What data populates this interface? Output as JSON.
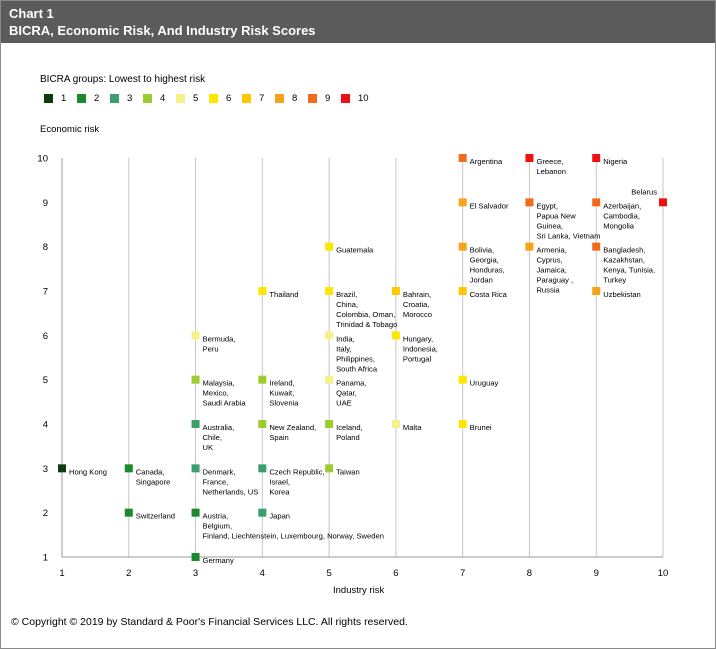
{
  "header": {
    "chart_number": "Chart 1",
    "title": "BICRA, Economic Risk, And Industry Risk Scores"
  },
  "legend": {
    "title": "BICRA groups:  Lowest to highest risk",
    "items": [
      {
        "label": "1",
        "color": "#0d3b10"
      },
      {
        "label": "2",
        "color": "#1a8a2c"
      },
      {
        "label": "3",
        "color": "#3a9e6e"
      },
      {
        "label": "4",
        "color": "#9ccc2e"
      },
      {
        "label": "5",
        "color": "#f4f08a"
      },
      {
        "label": "6",
        "color": "#ffe600"
      },
      {
        "label": "7",
        "color": "#ffc800"
      },
      {
        "label": "8",
        "color": "#f7a21b"
      },
      {
        "label": "9",
        "color": "#f26b1d"
      },
      {
        "label": "10",
        "color": "#ee1111"
      }
    ]
  },
  "copyright": "© Copyright © 2019 by Standard & Poor's Financial Services LLC. All rights reserved.",
  "chart_data": {
    "type": "scatter",
    "title": "BICRA, Economic Risk, And Industry Risk Scores",
    "xlabel": "Industry risk",
    "ylabel": "Economic risk",
    "xlim": [
      1,
      10
    ],
    "ylim": [
      1,
      10
    ],
    "x_ticks": [
      "1",
      "2",
      "3",
      "4",
      "5",
      "6",
      "7",
      "8",
      "9",
      "10"
    ],
    "y_ticks": [
      "1",
      "2",
      "3",
      "4",
      "5",
      "6",
      "7",
      "8",
      "9",
      "10"
    ],
    "grid": "vertical",
    "legend_position": "top-left",
    "points": [
      {
        "x": 1,
        "y": 3,
        "group": 1,
        "label": [
          "Hong Kong"
        ]
      },
      {
        "x": 2,
        "y": 3,
        "group": 2,
        "label": [
          "Canada,",
          "Singapore"
        ]
      },
      {
        "x": 2,
        "y": 2,
        "group": 2,
        "label": [
          "Switzerland"
        ]
      },
      {
        "x": 3,
        "y": 1,
        "group": 2,
        "label": [
          "Germany"
        ]
      },
      {
        "x": 3,
        "y": 2,
        "group": 2,
        "label": [
          "Austria,",
          "Belgium,",
          "Finland, Liechtenstein, Luxembourg, Norway, Sweden"
        ]
      },
      {
        "x": 3,
        "y": 3,
        "group": 3,
        "label": [
          "Denmark,",
          "France,",
          "Netherlands, US"
        ]
      },
      {
        "x": 3,
        "y": 4,
        "group": 3,
        "label": [
          "Australia,",
          "Chile,",
          "UK"
        ]
      },
      {
        "x": 3,
        "y": 5,
        "group": 4,
        "label": [
          "Malaysia,",
          "Mexico,",
          "Saudi Arabia"
        ]
      },
      {
        "x": 3,
        "y": 6,
        "group": 5,
        "label": [
          "Bermuda,",
          "Peru"
        ]
      },
      {
        "x": 4,
        "y": 2,
        "group": 3,
        "label": [
          "Japan"
        ]
      },
      {
        "x": 4,
        "y": 3,
        "group": 3,
        "label": [
          "Czech Republic,",
          "Israel,",
          "Korea"
        ]
      },
      {
        "x": 4,
        "y": 4,
        "group": 4,
        "label": [
          "New Zealand,",
          "Spain"
        ]
      },
      {
        "x": 4,
        "y": 5,
        "group": 4,
        "label": [
          "Ireland,",
          "Kuwait,",
          "Slovenia"
        ]
      },
      {
        "x": 4,
        "y": 7,
        "group": 6,
        "label": [
          "Thailand"
        ]
      },
      {
        "x": 5,
        "y": 3,
        "group": 4,
        "label": [
          "Taiwan"
        ]
      },
      {
        "x": 5,
        "y": 4,
        "group": 4,
        "label": [
          "Iceland,",
          "Poland"
        ]
      },
      {
        "x": 5,
        "y": 5,
        "group": 5,
        "label": [
          "Panama,",
          "Qatar,",
          "UAE"
        ]
      },
      {
        "x": 5,
        "y": 6,
        "group": 5,
        "label": [
          "India,",
          "Italy,",
          "Philippines,",
          "South Africa"
        ]
      },
      {
        "x": 5,
        "y": 7,
        "group": 6,
        "label": [
          "Brazil,",
          "China,",
          "Colombia, Oman,",
          "Trinidad & Tobago"
        ]
      },
      {
        "x": 5,
        "y": 8,
        "group": 6,
        "label": [
          "Guatemala"
        ]
      },
      {
        "x": 6,
        "y": 4,
        "group": 5,
        "label": [
          "Malta"
        ]
      },
      {
        "x": 6,
        "y": 6,
        "group": 6,
        "label": [
          "Hungary,",
          "Indonesia,",
          "Portugal"
        ]
      },
      {
        "x": 6,
        "y": 7,
        "group": 7,
        "label": [
          "Bahrain,",
          "Croatia,",
          "Morocco"
        ]
      },
      {
        "x": 7,
        "y": 4,
        "group": 6,
        "label": [
          "Brunei"
        ]
      },
      {
        "x": 7,
        "y": 5,
        "group": 6,
        "label": [
          "Uruguay"
        ]
      },
      {
        "x": 7,
        "y": 7,
        "group": 7,
        "label": [
          "Costa Rica"
        ]
      },
      {
        "x": 7,
        "y": 8,
        "group": 8,
        "label": [
          "Bolivia,",
          "Georgia,",
          "Honduras,",
          "Jordan"
        ]
      },
      {
        "x": 7,
        "y": 9,
        "group": 8,
        "label": [
          "El Salvador"
        ]
      },
      {
        "x": 7,
        "y": 10,
        "group": 9,
        "label": [
          "Argentina"
        ]
      },
      {
        "x": 8,
        "y": 8,
        "group": 8,
        "label": [
          "Armenia,",
          "Cyprus,",
          "Jamaica,",
          "Paraguay ,",
          "Russia"
        ]
      },
      {
        "x": 8,
        "y": 9,
        "group": 9,
        "label": [
          "Egypt,",
          "Papua New",
          "Guinea,",
          "Sri Lanka, Vietnam"
        ]
      },
      {
        "x": 8,
        "y": 10,
        "group": 10,
        "label": [
          "Greece,",
          "Lebanon"
        ]
      },
      {
        "x": 9,
        "y": 7,
        "group": 8,
        "label": [
          "Uzbekistan"
        ]
      },
      {
        "x": 9,
        "y": 8,
        "group": 9,
        "label": [
          "Bangladesh,",
          "Kazakhstan,",
          "Kenya, Tunisia,",
          "Turkey"
        ]
      },
      {
        "x": 9,
        "y": 9,
        "group": 9,
        "label": [
          "Azerbaijan,",
          "Cambodia,",
          "Mongolia"
        ]
      },
      {
        "x": 9,
        "y": 10,
        "group": 10,
        "label": [
          "Nigeria"
        ]
      },
      {
        "x": 10,
        "y": 9,
        "group": 10,
        "label": [
          "Belarus"
        ]
      }
    ]
  }
}
